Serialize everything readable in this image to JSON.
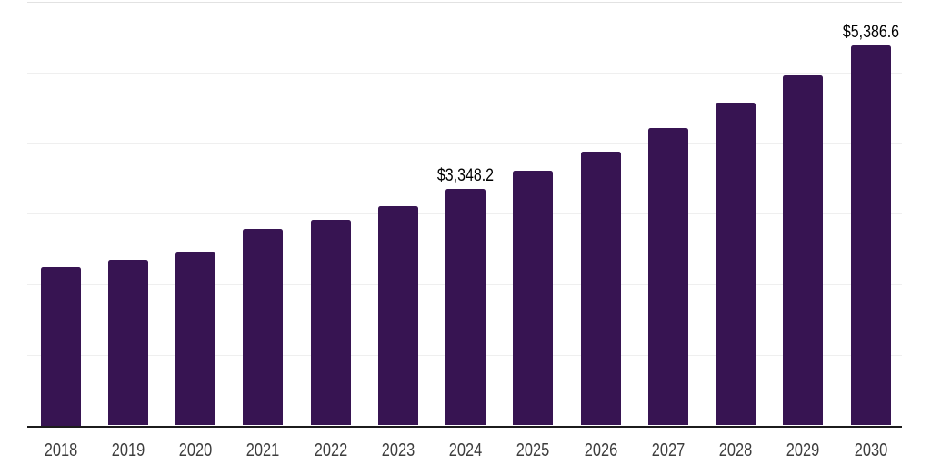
{
  "chart_data": {
    "type": "bar",
    "title": "",
    "xlabel": "",
    "ylabel": "",
    "categories": [
      "2018",
      "2019",
      "2020",
      "2021",
      "2022",
      "2023",
      "2024",
      "2025",
      "2026",
      "2027",
      "2028",
      "2029",
      "2030"
    ],
    "values": [
      2250,
      2345,
      2450,
      2790,
      2915,
      3110,
      3348.2,
      3610,
      3880,
      4215,
      4575,
      4960,
      5386.6
    ],
    "data_labels": [
      "",
      "",
      "",
      "",
      "",
      "",
      "$3,348.2",
      "",
      "",
      "",
      "",
      "",
      "$5,386.6"
    ],
    "ylim": [
      0,
      6000
    ],
    "y_gridline_step": 1000,
    "grid": true,
    "legend": "none",
    "y_axis_labels_visible": false,
    "colors": {
      "bar": "#371452",
      "axis": "#1c1c1c",
      "gridline": "#efefef",
      "top_gridline": "#e2e2e2",
      "tick_label": "#3d3d3d",
      "data_label": "#000000",
      "background": "#ffffff"
    }
  }
}
